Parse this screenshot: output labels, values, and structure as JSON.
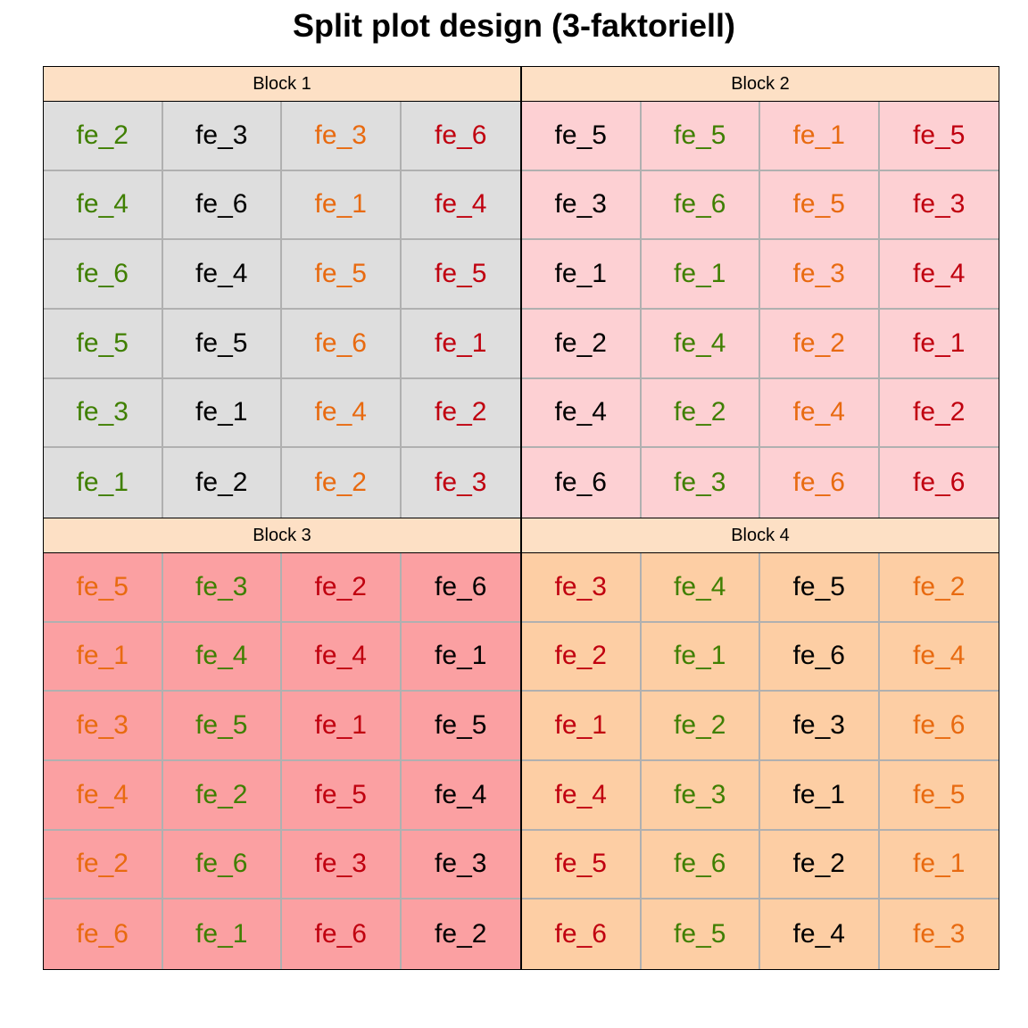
{
  "title": "Split plot design (3-faktoriell)",
  "colors": {
    "strip_bg": "#fde0c5",
    "gridline": "#b0b0b0",
    "text": {
      "green": "#3f7f00",
      "black": "#000000",
      "orange": "#e86a10",
      "red": "#c0000f"
    }
  },
  "blocks": [
    {
      "label": "Block 1",
      "bg": "#dedede",
      "columns": [
        {
          "color": "green",
          "cells": [
            "fe_2",
            "fe_4",
            "fe_6",
            "fe_5",
            "fe_3",
            "fe_1"
          ]
        },
        {
          "color": "black",
          "cells": [
            "fe_3",
            "fe_6",
            "fe_4",
            "fe_5",
            "fe_1",
            "fe_2"
          ]
        },
        {
          "color": "orange",
          "cells": [
            "fe_3",
            "fe_1",
            "fe_5",
            "fe_6",
            "fe_4",
            "fe_2"
          ]
        },
        {
          "color": "red",
          "cells": [
            "fe_6",
            "fe_4",
            "fe_5",
            "fe_1",
            "fe_2",
            "fe_3"
          ]
        }
      ]
    },
    {
      "label": "Block 2",
      "bg": "#fdd0d3",
      "columns": [
        {
          "color": "black",
          "cells": [
            "fe_5",
            "fe_3",
            "fe_1",
            "fe_2",
            "fe_4",
            "fe_6"
          ]
        },
        {
          "color": "green",
          "cells": [
            "fe_5",
            "fe_6",
            "fe_1",
            "fe_4",
            "fe_2",
            "fe_3"
          ]
        },
        {
          "color": "orange",
          "cells": [
            "fe_1",
            "fe_5",
            "fe_3",
            "fe_2",
            "fe_4",
            "fe_6"
          ]
        },
        {
          "color": "red",
          "cells": [
            "fe_5",
            "fe_3",
            "fe_4",
            "fe_1",
            "fe_2",
            "fe_6"
          ]
        }
      ]
    },
    {
      "label": "Block 3",
      "bg": "#fba0a2",
      "columns": [
        {
          "color": "orange",
          "cells": [
            "fe_5",
            "fe_1",
            "fe_3",
            "fe_4",
            "fe_2",
            "fe_6"
          ]
        },
        {
          "color": "green",
          "cells": [
            "fe_3",
            "fe_4",
            "fe_5",
            "fe_2",
            "fe_6",
            "fe_1"
          ]
        },
        {
          "color": "red",
          "cells": [
            "fe_2",
            "fe_4",
            "fe_1",
            "fe_5",
            "fe_3",
            "fe_6"
          ]
        },
        {
          "color": "black",
          "cells": [
            "fe_6",
            "fe_1",
            "fe_5",
            "fe_4",
            "fe_3",
            "fe_2"
          ]
        }
      ]
    },
    {
      "label": "Block 4",
      "bg": "#fdcea4",
      "columns": [
        {
          "color": "red",
          "cells": [
            "fe_3",
            "fe_2",
            "fe_1",
            "fe_4",
            "fe_5",
            "fe_6"
          ]
        },
        {
          "color": "green",
          "cells": [
            "fe_4",
            "fe_1",
            "fe_2",
            "fe_3",
            "fe_6",
            "fe_5"
          ]
        },
        {
          "color": "black",
          "cells": [
            "fe_5",
            "fe_6",
            "fe_3",
            "fe_1",
            "fe_2",
            "fe_4"
          ]
        },
        {
          "color": "orange",
          "cells": [
            "fe_2",
            "fe_4",
            "fe_6",
            "fe_5",
            "fe_1",
            "fe_3"
          ]
        }
      ]
    }
  ]
}
